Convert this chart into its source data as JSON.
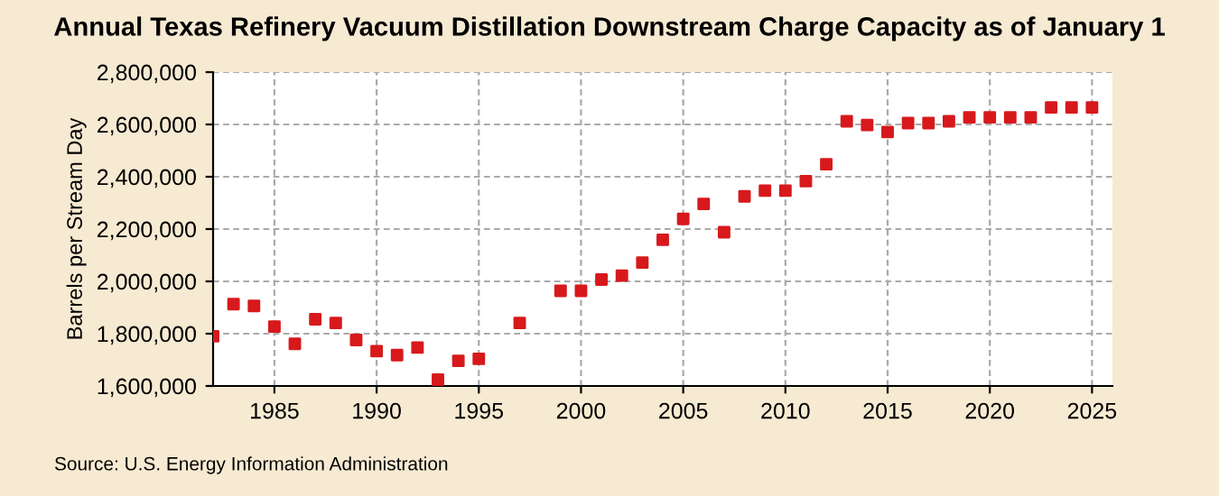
{
  "chart_data": {
    "type": "scatter",
    "title": "Annual Texas Refinery Vacuum Distillation Downstream Charge Capacity as of January 1",
    "ylabel": "Barrels per Stream Day",
    "annotations": [
      "Source: U.S. Energy Information Administration"
    ],
    "x": [
      1982,
      1983,
      1984,
      1985,
      1986,
      1987,
      1988,
      1989,
      1990,
      1991,
      1992,
      1993,
      1994,
      1995,
      1997,
      1999,
      2000,
      2001,
      2002,
      2003,
      2004,
      2005,
      2006,
      2007,
      2008,
      2009,
      2010,
      2011,
      2012,
      2013,
      2014,
      2015,
      2016,
      2017,
      2018,
      2019,
      2020,
      2021,
      2022,
      2023,
      2024,
      2025
    ],
    "series": [
      {
        "color": "#d7191c",
        "values": [
          1790000,
          1913000,
          1906000,
          1827000,
          1761000,
          1855000,
          1841000,
          1776000,
          1733000,
          1718000,
          1747000,
          1624000,
          1696000,
          1704000,
          1841000,
          1964000,
          1964000,
          2007000,
          2022000,
          2072000,
          2159000,
          2239000,
          2296000,
          2188000,
          2325000,
          2347000,
          2347000,
          2383000,
          2448000,
          2612000,
          2598000,
          2571000,
          2605000,
          2605000,
          2612000,
          2627000,
          2627000,
          2627000,
          2627000,
          2665000,
          2665000,
          2665000
        ]
      }
    ],
    "xlim": [
      1982,
      2026
    ],
    "xticks": [
      1985,
      1990,
      1995,
      2000,
      2005,
      2010,
      2015,
      2020,
      2025
    ],
    "ylim": [
      1600000,
      2800000
    ],
    "yticks": [
      {
        "value": 1600000,
        "label": "1,600,000"
      },
      {
        "value": 1800000,
        "label": "1,800,000"
      },
      {
        "value": 2000000,
        "label": "2,000,000"
      },
      {
        "value": 2200000,
        "label": "2,200,000"
      },
      {
        "value": 2400000,
        "label": "2,400,000"
      },
      {
        "value": 2600000,
        "label": "2,600,000"
      },
      {
        "value": 2800000,
        "label": "2,800,000"
      }
    ],
    "grid": true,
    "marker": "square"
  }
}
